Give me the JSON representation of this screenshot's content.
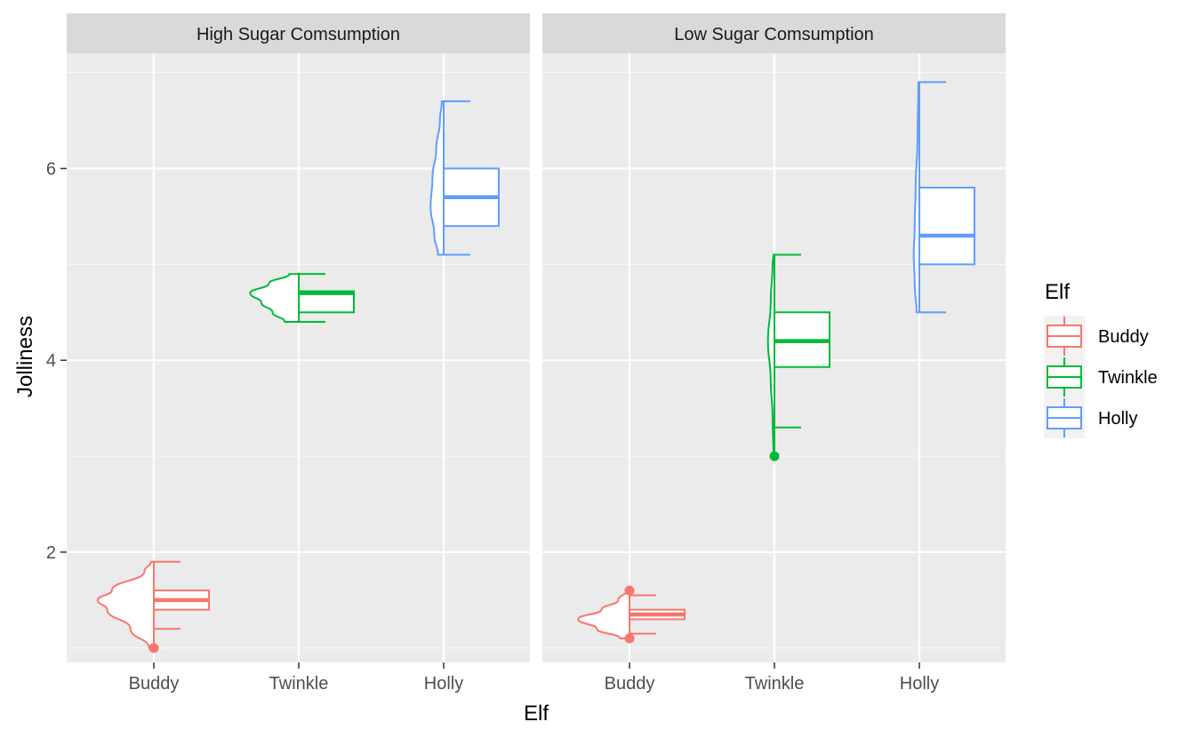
{
  "chart_data": {
    "type": "box",
    "variant": "half-violin + boxplot",
    "xlabel": "Elf",
    "ylabel": "Jolliness",
    "ylim": [
      0.85,
      7.2
    ],
    "yticks": [
      2,
      4,
      6
    ],
    "categories": [
      "Buddy",
      "Twinkle",
      "Holly"
    ],
    "legend": {
      "title": "Elf",
      "placement": "right",
      "entries": [
        "Buddy",
        "Twinkle",
        "Holly"
      ]
    },
    "colors": {
      "Buddy": "#F8766D",
      "Twinkle": "#00BA38",
      "Holly": "#619CFF"
    },
    "grid": true,
    "panels": [
      {
        "label": "High Sugar Comsumption",
        "boxes": [
          {
            "elf": "Buddy",
            "whisker_low": 1.2,
            "q1": 1.4,
            "median": 1.5,
            "q3": 1.6,
            "whisker_high": 1.9,
            "outliers": [
              1.0
            ]
          },
          {
            "elf": "Twinkle",
            "whisker_low": 4.4,
            "q1": 4.5,
            "median": 4.7,
            "q3": 4.72,
            "whisker_high": 4.9,
            "outliers": []
          },
          {
            "elf": "Holly",
            "whisker_low": 5.1,
            "q1": 5.4,
            "median": 5.7,
            "q3": 6.0,
            "whisker_high": 6.7,
            "outliers": []
          }
        ],
        "densities": [
          {
            "elf": "Buddy",
            "y": [
              1.0,
              1.2,
              1.4,
              1.5,
              1.6,
              1.8,
              1.9
            ],
            "width": [
              0.05,
              0.25,
              0.5,
              0.6,
              0.45,
              0.1,
              0.03
            ]
          },
          {
            "elf": "Twinkle",
            "y": [
              4.4,
              4.5,
              4.6,
              4.7,
              4.8,
              4.9
            ],
            "width": [
              0.15,
              0.28,
              0.4,
              0.52,
              0.32,
              0.1
            ]
          },
          {
            "elf": "Holly",
            "y": [
              5.1,
              5.3,
              5.6,
              5.9,
              6.2,
              6.5,
              6.7
            ],
            "width": [
              0.06,
              0.1,
              0.14,
              0.12,
              0.08,
              0.04,
              0.02
            ]
          }
        ]
      },
      {
        "label": "Low Sugar Comsumption",
        "boxes": [
          {
            "elf": "Buddy",
            "whisker_low": 1.15,
            "q1": 1.3,
            "median": 1.35,
            "q3": 1.4,
            "whisker_high": 1.55,
            "outliers": [
              1.1,
              1.6
            ]
          },
          {
            "elf": "Twinkle",
            "whisker_low": 3.3,
            "q1": 3.93,
            "median": 4.2,
            "q3": 4.5,
            "whisker_high": 5.1,
            "outliers": [
              3.0
            ]
          },
          {
            "elf": "Holly",
            "whisker_low": 4.5,
            "q1": 5.0,
            "median": 5.3,
            "q3": 5.8,
            "whisker_high": 6.9,
            "outliers": []
          }
        ],
        "densities": [
          {
            "elf": "Buddy",
            "y": [
              1.1,
              1.2,
              1.3,
              1.4,
              1.5,
              1.6
            ],
            "width": [
              0.1,
              0.35,
              0.55,
              0.3,
              0.12,
              0.03
            ]
          },
          {
            "elf": "Twinkle",
            "y": [
              3.0,
              3.4,
              3.8,
              4.2,
              4.6,
              5.0,
              5.1
            ],
            "width": [
              0.01,
              0.02,
              0.04,
              0.07,
              0.04,
              0.02,
              0.01
            ]
          },
          {
            "elf": "Holly",
            "y": [
              4.5,
              4.8,
              5.1,
              5.4,
              5.8,
              6.3,
              6.9
            ],
            "width": [
              0.03,
              0.05,
              0.06,
              0.05,
              0.04,
              0.02,
              0.01
            ]
          }
        ]
      }
    ]
  }
}
